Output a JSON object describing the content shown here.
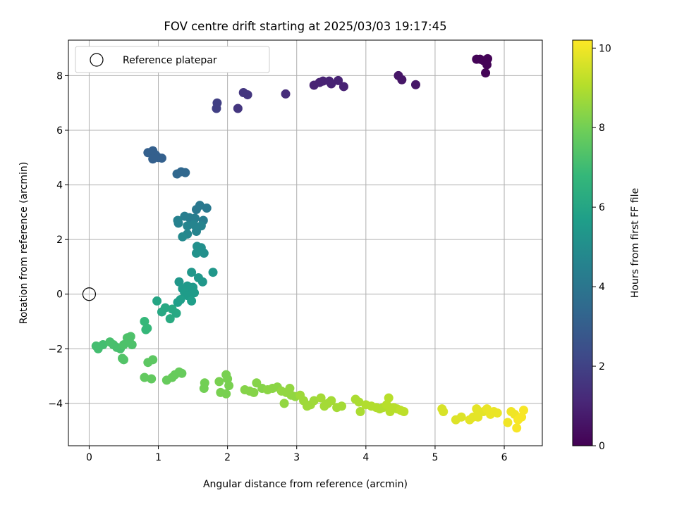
{
  "chart_data": {
    "type": "scatter",
    "title": "FOV centre drift starting at 2025/03/03 19:17:45",
    "xlabel": "Angular distance from reference (arcmin)",
    "ylabel": "Rotation from reference (arcmin)",
    "xlim": [
      -0.3,
      6.55
    ],
    "ylim": [
      -5.55,
      9.3
    ],
    "xticks": [
      "0",
      "1",
      "2",
      "3",
      "4",
      "5",
      "6"
    ],
    "yticks": [
      "−4",
      "−2",
      "0",
      "2",
      "4",
      "6",
      "8"
    ],
    "grid": true,
    "legend": {
      "position": "top-left",
      "entries": [
        "Reference platepar"
      ]
    },
    "colorbar": {
      "label": "Hours from first FF file",
      "range": [
        0,
        10.2
      ],
      "ticks": [
        "0",
        "2",
        "4",
        "6",
        "8",
        "10"
      ],
      "colormap": "viridis"
    },
    "reference_point": {
      "x": 0,
      "y": 0
    },
    "points": [
      [
        5.6,
        8.6,
        0.1
      ],
      [
        5.65,
        8.6,
        0.1
      ],
      [
        5.7,
        8.55,
        0.1
      ],
      [
        5.76,
        8.62,
        0.1
      ],
      [
        5.75,
        8.4,
        0.1
      ],
      [
        5.73,
        8.1,
        0.1
      ],
      [
        4.47,
        8.0,
        0.6
      ],
      [
        4.52,
        7.85,
        0.6
      ],
      [
        4.72,
        7.67,
        0.6
      ],
      [
        3.25,
        7.65,
        1.0
      ],
      [
        3.33,
        7.75,
        1.0
      ],
      [
        3.38,
        7.8,
        1.0
      ],
      [
        3.47,
        7.8,
        1.0
      ],
      [
        3.6,
        7.82,
        1.0
      ],
      [
        3.68,
        7.6,
        1.0
      ],
      [
        3.5,
        7.7,
        1.0
      ],
      [
        2.84,
        7.33,
        1.3
      ],
      [
        2.23,
        7.38,
        1.6
      ],
      [
        2.29,
        7.3,
        1.6
      ],
      [
        2.15,
        6.8,
        1.6
      ],
      [
        1.85,
        7.0,
        1.9
      ],
      [
        1.84,
        6.8,
        1.9
      ],
      [
        0.85,
        5.18,
        3.1
      ],
      [
        0.92,
        5.25,
        3.1
      ],
      [
        0.96,
        5.1,
        3.1
      ],
      [
        1.0,
        5.0,
        3.1
      ],
      [
        1.05,
        4.98,
        3.1
      ],
      [
        0.92,
        4.95,
        3.1
      ],
      [
        1.27,
        4.4,
        3.4
      ],
      [
        1.33,
        4.48,
        3.4
      ],
      [
        1.39,
        4.45,
        3.4
      ],
      [
        1.6,
        3.25,
        4.1
      ],
      [
        1.7,
        3.15,
        4.1
      ],
      [
        1.55,
        3.1,
        4.1
      ],
      [
        1.45,
        2.8,
        4.3
      ],
      [
        1.38,
        2.85,
        4.3
      ],
      [
        1.53,
        2.78,
        4.3
      ],
      [
        1.65,
        2.7,
        4.3
      ],
      [
        1.28,
        2.7,
        4.5
      ],
      [
        1.29,
        2.6,
        4.5
      ],
      [
        1.42,
        2.5,
        4.6
      ],
      [
        1.51,
        2.55,
        4.6
      ],
      [
        1.62,
        2.5,
        4.6
      ],
      [
        1.55,
        2.3,
        4.6
      ],
      [
        1.42,
        2.2,
        4.7
      ],
      [
        1.35,
        2.1,
        4.8
      ],
      [
        1.56,
        1.75,
        5.1
      ],
      [
        1.62,
        1.7,
        5.1
      ],
      [
        1.66,
        1.5,
        5.1
      ],
      [
        1.55,
        1.5,
        5.2
      ],
      [
        1.3,
        0.45,
        5.4
      ],
      [
        1.48,
        0.8,
        5.4
      ],
      [
        1.58,
        0.6,
        5.4
      ],
      [
        1.64,
        0.45,
        5.4
      ],
      [
        1.79,
        0.8,
        5.4
      ],
      [
        1.42,
        0.3,
        5.5
      ],
      [
        1.35,
        0.2,
        5.5
      ],
      [
        1.45,
        0.1,
        5.5
      ],
      [
        1.5,
        0.25,
        5.5
      ],
      [
        1.38,
        0.05,
        5.6
      ],
      [
        1.52,
        0.05,
        5.6
      ],
      [
        1.42,
        -0.05,
        5.6
      ],
      [
        1.32,
        -0.2,
        5.7
      ],
      [
        1.48,
        -0.25,
        5.7
      ],
      [
        1.28,
        -0.3,
        5.7
      ],
      [
        0.98,
        -0.25,
        6.0
      ],
      [
        1.1,
        -0.5,
        6.1
      ],
      [
        1.2,
        -0.55,
        6.1
      ],
      [
        1.26,
        -0.7,
        6.1
      ],
      [
        1.05,
        -0.65,
        6.1
      ],
      [
        1.17,
        -0.9,
        6.2
      ],
      [
        0.8,
        -1.0,
        6.8
      ],
      [
        0.82,
        -1.3,
        6.8
      ],
      [
        0.84,
        -1.25,
        6.8
      ],
      [
        0.1,
        -1.9,
        7.1
      ],
      [
        0.13,
        -2.0,
        7.1
      ],
      [
        0.2,
        -1.85,
        7.1
      ],
      [
        0.3,
        -1.75,
        7.2
      ],
      [
        0.35,
        -1.85,
        7.2
      ],
      [
        0.4,
        -1.95,
        7.2
      ],
      [
        0.45,
        -2.0,
        7.2
      ],
      [
        0.5,
        -1.85,
        7.3
      ],
      [
        0.55,
        -1.6,
        7.3
      ],
      [
        0.6,
        -1.55,
        7.3
      ],
      [
        0.58,
        -1.72,
        7.3
      ],
      [
        0.62,
        -1.85,
        7.3
      ],
      [
        0.48,
        -2.35,
        7.4
      ],
      [
        0.5,
        -2.4,
        7.4
      ],
      [
        0.85,
        -2.5,
        7.6
      ],
      [
        0.92,
        -2.4,
        7.6
      ],
      [
        0.8,
        -3.05,
        7.7
      ],
      [
        0.9,
        -3.1,
        7.7
      ],
      [
        1.12,
        -3.15,
        7.8
      ],
      [
        1.2,
        -3.05,
        7.8
      ],
      [
        1.24,
        -2.95,
        7.8
      ],
      [
        1.3,
        -2.85,
        7.8
      ],
      [
        1.34,
        -2.9,
        7.8
      ],
      [
        1.67,
        -3.25,
        8.0
      ],
      [
        1.66,
        -3.45,
        8.0
      ],
      [
        1.88,
        -3.2,
        8.1
      ],
      [
        1.98,
        -2.95,
        8.1
      ],
      [
        2.0,
        -3.1,
        8.1
      ],
      [
        2.02,
        -3.35,
        8.1
      ],
      [
        1.9,
        -3.6,
        8.1
      ],
      [
        1.98,
        -3.65,
        8.1
      ],
      [
        2.25,
        -3.5,
        8.3
      ],
      [
        2.32,
        -3.55,
        8.3
      ],
      [
        2.38,
        -3.6,
        8.3
      ],
      [
        2.42,
        -3.25,
        8.3
      ],
      [
        2.5,
        -3.45,
        8.3
      ],
      [
        2.58,
        -3.5,
        8.4
      ],
      [
        2.65,
        -3.45,
        8.4
      ],
      [
        2.72,
        -3.4,
        8.4
      ],
      [
        2.78,
        -3.55,
        8.5
      ],
      [
        2.85,
        -3.6,
        8.5
      ],
      [
        2.9,
        -3.45,
        8.5
      ],
      [
        2.92,
        -3.7,
        8.5
      ],
      [
        2.82,
        -4.0,
        8.5
      ],
      [
        2.98,
        -3.75,
        8.5
      ],
      [
        3.05,
        -3.7,
        8.7
      ],
      [
        3.1,
        -3.9,
        8.7
      ],
      [
        3.15,
        -4.1,
        8.7
      ],
      [
        3.2,
        -4.05,
        8.7
      ],
      [
        3.25,
        -3.9,
        8.7
      ],
      [
        3.35,
        -3.8,
        8.8
      ],
      [
        3.4,
        -4.1,
        8.8
      ],
      [
        3.45,
        -4.0,
        8.8
      ],
      [
        3.5,
        -3.9,
        8.8
      ],
      [
        3.58,
        -4.15,
        8.8
      ],
      [
        3.65,
        -4.1,
        8.8
      ],
      [
        3.85,
        -3.85,
        8.9
      ],
      [
        3.9,
        -3.95,
        8.9
      ],
      [
        3.92,
        -4.3,
        8.9
      ],
      [
        4.0,
        -4.05,
        9.0
      ],
      [
        4.08,
        -4.1,
        9.0
      ],
      [
        4.15,
        -4.15,
        9.0
      ],
      [
        4.2,
        -4.2,
        9.0
      ],
      [
        4.25,
        -4.15,
        9.0
      ],
      [
        4.3,
        -4.05,
        9.1
      ],
      [
        4.33,
        -3.8,
        9.1
      ],
      [
        4.35,
        -4.3,
        9.1
      ],
      [
        4.4,
        -4.15,
        9.1
      ],
      [
        4.45,
        -4.2,
        9.1
      ],
      [
        4.5,
        -4.25,
        9.2
      ],
      [
        4.55,
        -4.3,
        9.2
      ],
      [
        5.1,
        -4.2,
        9.6
      ],
      [
        5.12,
        -4.3,
        9.6
      ],
      [
        5.3,
        -4.6,
        9.7
      ],
      [
        5.38,
        -4.5,
        9.7
      ],
      [
        5.5,
        -4.6,
        9.8
      ],
      [
        5.55,
        -4.5,
        9.8
      ],
      [
        5.62,
        -4.5,
        9.8
      ],
      [
        5.6,
        -4.2,
        9.8
      ],
      [
        5.7,
        -4.3,
        9.8
      ],
      [
        5.75,
        -4.2,
        9.9
      ],
      [
        5.8,
        -4.4,
        9.9
      ],
      [
        5.85,
        -4.3,
        9.9
      ],
      [
        5.9,
        -4.35,
        9.9
      ],
      [
        6.05,
        -4.7,
        10.0
      ],
      [
        6.1,
        -4.3,
        10.0
      ],
      [
        6.15,
        -4.4,
        10.0
      ],
      [
        6.18,
        -4.9,
        10.1
      ],
      [
        6.2,
        -4.6,
        10.1
      ],
      [
        6.25,
        -4.5,
        10.1
      ],
      [
        6.28,
        -4.25,
        10.1
      ]
    ]
  }
}
